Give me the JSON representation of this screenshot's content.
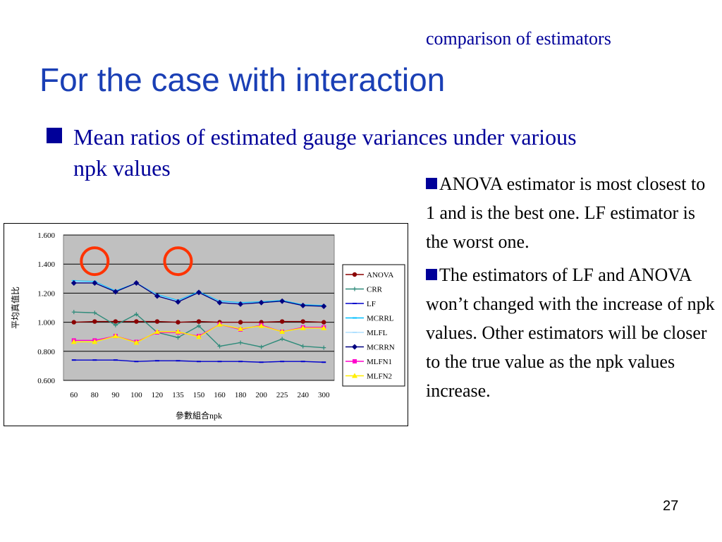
{
  "header": {
    "subtitle": "comparison of estimators",
    "title": "For the case with interaction"
  },
  "bullet": {
    "text": "Mean ratios of estimated gauge variances under various npk values"
  },
  "notes": [
    "ANOVA estimator is most closest to 1 and is the best one. LF estimator is the worst one.",
    "The estimators of LF and ANOVA won’t changed  with the increase of npk values. Other estimators will be closer to the true value as the npk values increase."
  ],
  "page_number": "27",
  "chart_data": {
    "type": "line",
    "title": "",
    "xlabel": "參數組合npk",
    "ylabel": "平均真值比",
    "categories": [
      "60",
      "80",
      "90",
      "100",
      "120",
      "135",
      "150",
      "160",
      "180",
      "200",
      "225",
      "240",
      "300"
    ],
    "ylim": [
      0.6,
      1.6
    ],
    "yticks": [
      "1.600",
      "1.400",
      "1.200",
      "1.000",
      "0.800",
      "0.600"
    ],
    "grid": true,
    "legend": "right",
    "plot_background": "#c0c0c0",
    "series": [
      {
        "name": "ANOVA",
        "color": "#8b0000",
        "marker": "circle",
        "values": [
          1.0,
          1.005,
          1.005,
          1.005,
          1.005,
          1.0,
          1.005,
          1.0,
          1.0,
          1.0,
          1.005,
          1.005,
          1.0
        ]
      },
      {
        "name": "CRR",
        "color": "#2e8b7a",
        "marker": "plus",
        "values": [
          1.07,
          1.065,
          0.98,
          1.055,
          0.93,
          0.895,
          0.975,
          0.835,
          0.86,
          0.83,
          0.885,
          0.835,
          0.825
        ]
      },
      {
        "name": "LF",
        "color": "#0000cc",
        "marker": "dash",
        "values": [
          0.74,
          0.74,
          0.74,
          0.73,
          0.735,
          0.735,
          0.73,
          0.73,
          0.73,
          0.725,
          0.73,
          0.73,
          0.725
        ]
      },
      {
        "name": "MCRRL",
        "color": "#00bfff",
        "marker": "dash",
        "values": [
          1.285,
          1.28,
          1.215,
          1.27,
          1.19,
          1.15,
          1.21,
          1.145,
          1.135,
          1.14,
          1.15,
          1.12,
          1.115
        ]
      },
      {
        "name": "MLFL",
        "color": "#b0e0ff",
        "marker": "dash",
        "values": [
          1.28,
          1.275,
          1.21,
          1.27,
          1.185,
          1.145,
          1.205,
          1.14,
          1.13,
          1.135,
          1.145,
          1.115,
          1.11
        ]
      },
      {
        "name": "MCRRN",
        "color": "#000080",
        "marker": "diamond",
        "values": [
          1.27,
          1.27,
          1.21,
          1.27,
          1.18,
          1.14,
          1.205,
          1.135,
          1.125,
          1.135,
          1.145,
          1.115,
          1.11
        ]
      },
      {
        "name": "MLFN1",
        "color": "#ff00cc",
        "marker": "square",
        "values": [
          0.875,
          0.875,
          0.905,
          0.865,
          0.93,
          0.93,
          0.905,
          0.985,
          0.95,
          0.98,
          0.935,
          0.965,
          0.965
        ]
      },
      {
        "name": "MLFN2",
        "color": "#ffee00",
        "marker": "triangle",
        "values": [
          0.865,
          0.865,
          0.905,
          0.86,
          0.935,
          0.935,
          0.9,
          0.985,
          0.955,
          0.975,
          0.935,
          0.96,
          0.96
        ]
      }
    ],
    "annotations": [
      {
        "type": "circle",
        "color": "#ff3300",
        "at_category": "80",
        "at_value": 1.42
      },
      {
        "type": "circle",
        "color": "#ff3300",
        "at_category": "135",
        "at_value": 1.42
      }
    ]
  }
}
